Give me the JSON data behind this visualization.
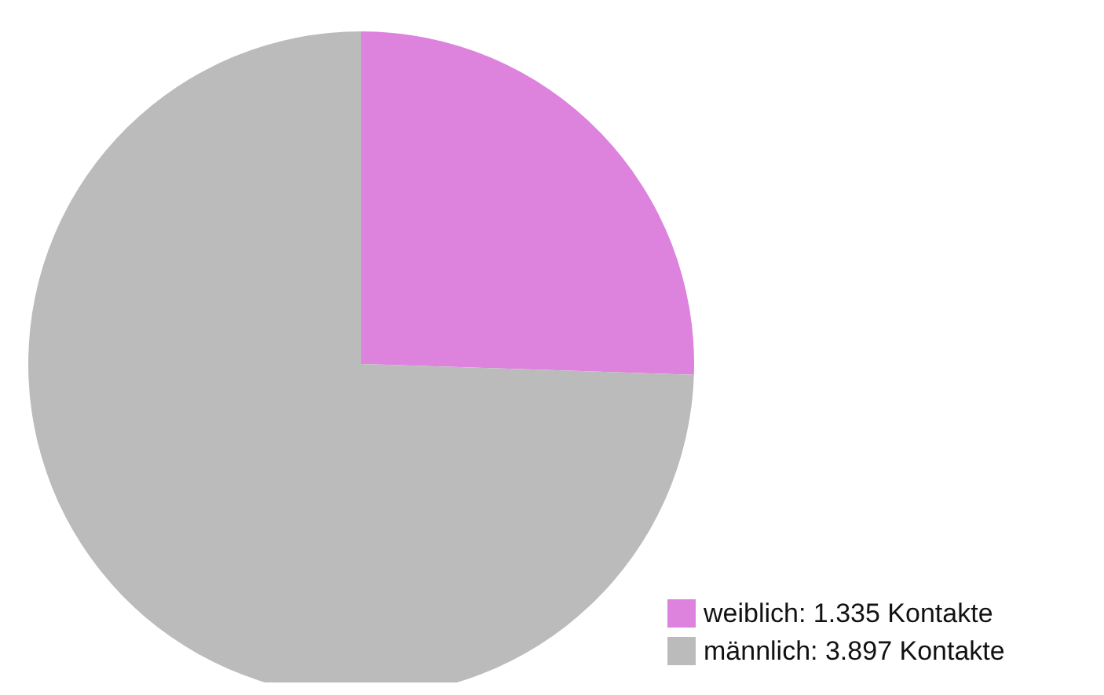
{
  "chart_data": {
    "type": "pie",
    "categories": [
      "weiblich: 1.335 Kontakte",
      "männlich: 3.897 Kontakte"
    ],
    "values": [
      1335,
      3897
    ],
    "colors": [
      "#dd82dd",
      "#bbbbbb"
    ],
    "legend": "bottom right"
  }
}
